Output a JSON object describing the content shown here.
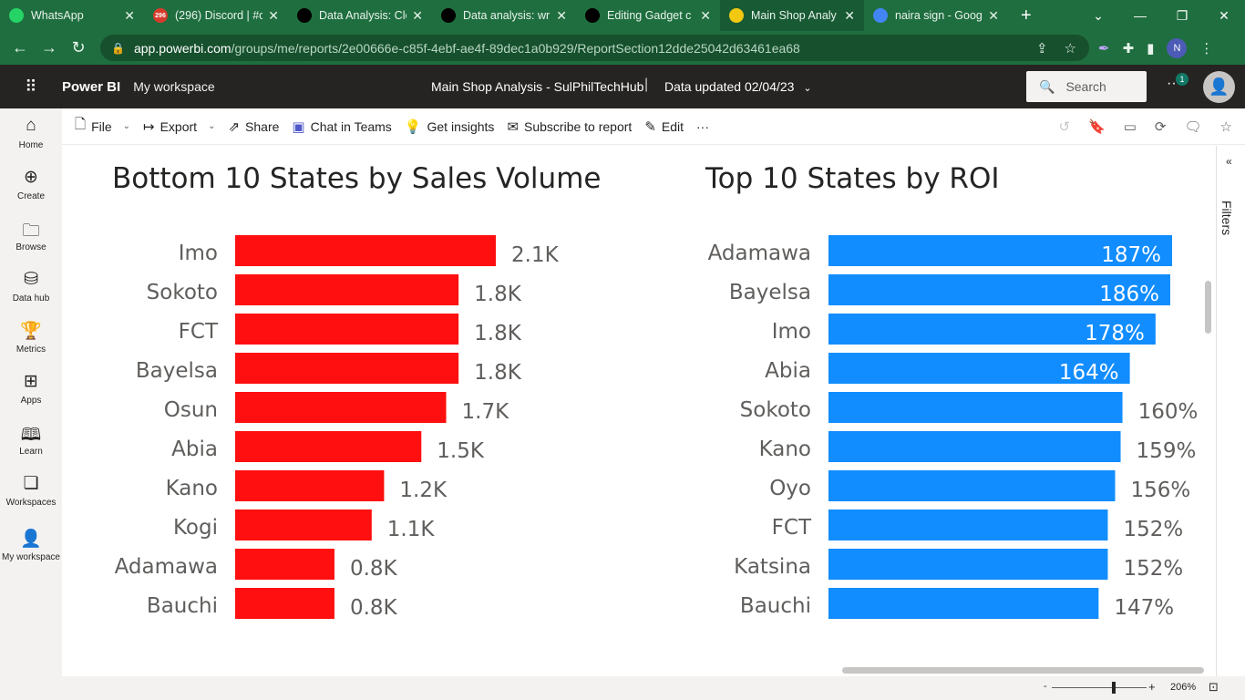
{
  "browser": {
    "tabs": [
      {
        "title": "WhatsApp",
        "icon": "whatsapp-icon",
        "color": "#25d366",
        "badge": ""
      },
      {
        "title": "(296) Discord | #c",
        "icon": "discord-icon",
        "color": "#d83b2b",
        "badge": "296"
      },
      {
        "title": "Data Analysis: Cle",
        "icon": "medium-icon",
        "color": "#000000",
        "badge": ""
      },
      {
        "title": "Data analysis: wr",
        "icon": "medium-icon",
        "color": "#000000",
        "badge": ""
      },
      {
        "title": "Editing Gadget c",
        "icon": "medium-icon",
        "color": "#000000",
        "badge": ""
      },
      {
        "title": "Main Shop Analy",
        "icon": "powerbi-icon",
        "color": "#f2c811",
        "badge": "",
        "active": true
      },
      {
        "title": "naira sign - Goog",
        "icon": "google-icon",
        "color": "#4285f4",
        "badge": ""
      }
    ],
    "url_host": "app.powerbi.com",
    "url_path": "/groups/me/reports/2e00666e-c85f-4ebf-ae4f-89dec1a0b929/ReportSection12dde25042d63461ea68",
    "profile_initial": "N"
  },
  "pbi_header": {
    "brand": "Power BI",
    "workspace": "My workspace",
    "report_title": "Main Shop Analysis - SulPhilTechHub",
    "separator": "|",
    "data_updated": "Data updated 02/04/23",
    "search_placeholder": "Search",
    "notification_count": "1"
  },
  "left_nav": [
    {
      "label": "Home",
      "icon": "home-icon"
    },
    {
      "label": "Create",
      "icon": "create-icon"
    },
    {
      "label": "Browse",
      "icon": "browse-icon"
    },
    {
      "label": "Data hub",
      "icon": "data-hub-icon"
    },
    {
      "label": "Metrics",
      "icon": "metrics-icon"
    },
    {
      "label": "Apps",
      "icon": "apps-icon"
    },
    {
      "label": "Learn",
      "icon": "learn-icon"
    },
    {
      "label": "Workspaces",
      "icon": "workspaces-icon"
    },
    {
      "label": "My workspace",
      "icon": "my-workspace-icon"
    }
  ],
  "action_bar": {
    "file": "File",
    "export": "Export",
    "share": "Share",
    "chat_in_teams": "Chat in Teams",
    "get_insights": "Get insights",
    "subscribe": "Subscribe to report",
    "edit": "Edit",
    "more": "···"
  },
  "filters_label": "Filters",
  "footer": {
    "zoom_level": "206%"
  },
  "chart_data": [
    {
      "type": "bar",
      "orientation": "horizontal",
      "title": "Bottom 10 States by Sales Volume",
      "categories": [
        "Imo",
        "Sokoto",
        "FCT",
        "Bayelsa",
        "Osun",
        "Abia",
        "Kano",
        "Kogi",
        "Adamawa",
        "Bauchi"
      ],
      "values": [
        2100,
        1800,
        1800,
        1800,
        1700,
        1500,
        1200,
        1100,
        800,
        800
      ],
      "data_labels": [
        "2.1K",
        "1.8K",
        "1.8K",
        "1.8K",
        "1.7K",
        "1.5K",
        "1.2K",
        "1.1K",
        "0.8K",
        "0.8K"
      ],
      "color": "#ff0f0f",
      "xlim": [
        0,
        2100
      ],
      "legend": "none",
      "grid": false
    },
    {
      "type": "bar",
      "orientation": "horizontal",
      "title": "Top 10 States by ROI",
      "categories": [
        "Adamawa",
        "Bayelsa",
        "Imo",
        "Abia",
        "Sokoto",
        "Kano",
        "Oyo",
        "FCT",
        "Katsina",
        "Bauchi"
      ],
      "values": [
        187,
        186,
        178,
        164,
        160,
        159,
        156,
        152,
        152,
        147
      ],
      "data_labels": [
        "187%",
        "186%",
        "178%",
        "164%",
        "160%",
        "159%",
        "156%",
        "152%",
        "152%",
        "147%"
      ],
      "color": "#118dff",
      "xlim": [
        0,
        187
      ],
      "legend": "none",
      "grid": false
    }
  ]
}
